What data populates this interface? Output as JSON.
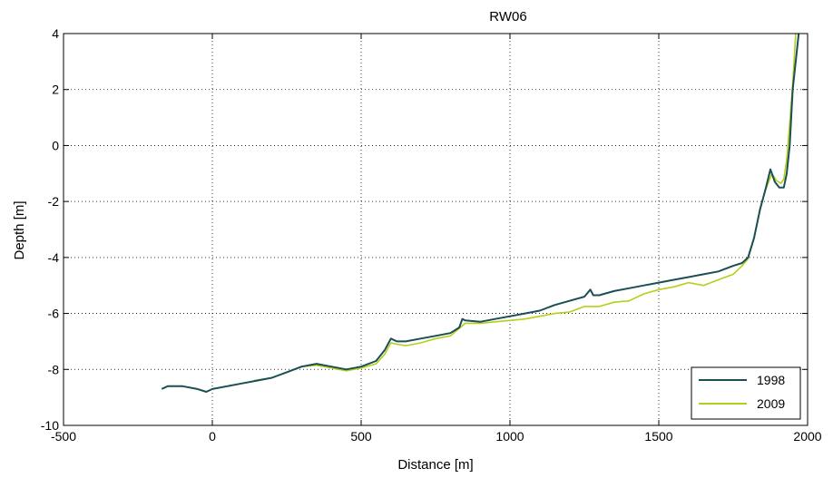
{
  "chart_data": {
    "type": "line",
    "title": "RW06",
    "xlabel": "Distance [m]",
    "ylabel": "Depth [m]",
    "xlim": [
      -500,
      2000
    ],
    "ylim": [
      -10,
      4
    ],
    "xticks": [
      "-500",
      "0",
      "500",
      "1000",
      "1500",
      "2000"
    ],
    "yticks": [
      "4",
      "2",
      "0",
      "-2",
      "-4",
      "-6",
      "-8",
      "-10"
    ],
    "grid": true,
    "legend_position": "bottom-right",
    "series": [
      {
        "name": "1998",
        "color": "#1a4f55",
        "x": [
          -170,
          -150,
          -100,
          -50,
          -20,
          0,
          50,
          100,
          150,
          200,
          250,
          300,
          350,
          400,
          450,
          500,
          550,
          580,
          600,
          620,
          650,
          700,
          750,
          800,
          830,
          840,
          850,
          900,
          950,
          1000,
          1050,
          1100,
          1150,
          1200,
          1250,
          1270,
          1280,
          1300,
          1350,
          1400,
          1450,
          1500,
          1550,
          1600,
          1650,
          1700,
          1750,
          1780,
          1800,
          1820,
          1840,
          1860,
          1875,
          1890,
          1905,
          1920,
          1930,
          1940,
          1950,
          1960,
          1970
        ],
        "y": [
          -8.7,
          -8.6,
          -8.6,
          -8.7,
          -8.8,
          -8.7,
          -8.6,
          -8.5,
          -8.4,
          -8.3,
          -8.1,
          -7.9,
          -7.8,
          -7.9,
          -8.0,
          -7.9,
          -7.7,
          -7.3,
          -6.9,
          -7.0,
          -7.0,
          -6.9,
          -6.8,
          -6.7,
          -6.5,
          -6.2,
          -6.25,
          -6.3,
          -6.2,
          -6.1,
          -6.0,
          -5.9,
          -5.7,
          -5.55,
          -5.4,
          -5.15,
          -5.35,
          -5.35,
          -5.2,
          -5.1,
          -5.0,
          -4.9,
          -4.8,
          -4.7,
          -4.6,
          -4.5,
          -4.3,
          -4.2,
          -4.0,
          -3.3,
          -2.3,
          -1.5,
          -0.85,
          -1.3,
          -1.5,
          -1.5,
          -1.0,
          0.0,
          2.0,
          3.0,
          4.0
        ]
      },
      {
        "name": "2009",
        "color": "#b5cf18",
        "x": [
          140,
          200,
          250,
          300,
          350,
          400,
          450,
          500,
          550,
          580,
          600,
          620,
          650,
          700,
          750,
          800,
          850,
          900,
          950,
          1000,
          1050,
          1100,
          1150,
          1200,
          1250,
          1300,
          1350,
          1400,
          1450,
          1500,
          1550,
          1600,
          1650,
          1700,
          1750,
          1780,
          1800,
          1820,
          1840,
          1860,
          1880,
          1895,
          1910,
          1920,
          1930,
          1940,
          1950,
          1960
        ],
        "y": [
          -8.4,
          -8.3,
          -8.1,
          -7.9,
          -7.85,
          -7.95,
          -8.05,
          -7.95,
          -7.8,
          -7.45,
          -7.05,
          -7.1,
          -7.15,
          -7.05,
          -6.9,
          -6.8,
          -6.35,
          -6.35,
          -6.3,
          -6.25,
          -6.2,
          -6.1,
          -6.0,
          -5.95,
          -5.75,
          -5.75,
          -5.6,
          -5.55,
          -5.3,
          -5.15,
          -5.05,
          -4.9,
          -5.0,
          -4.8,
          -4.6,
          -4.3,
          -4.05,
          -3.3,
          -2.25,
          -1.55,
          -1.0,
          -1.25,
          -1.35,
          -1.2,
          -0.5,
          0.8,
          2.2,
          4.0
        ]
      }
    ]
  }
}
